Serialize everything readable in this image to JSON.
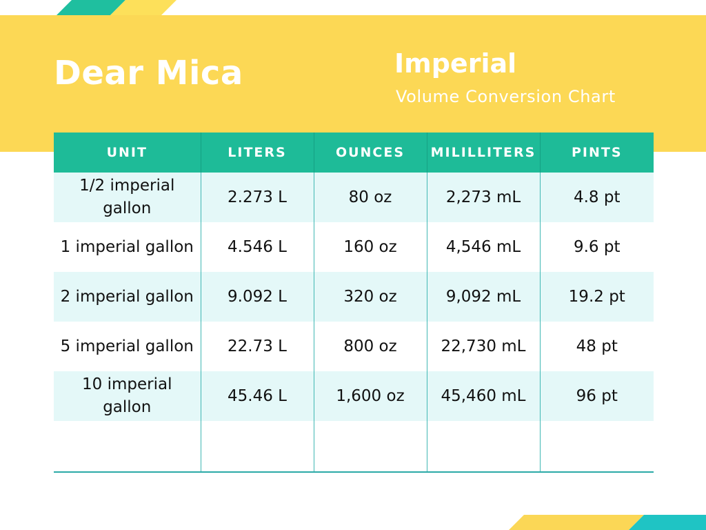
{
  "header": {
    "brand": "Dear Mica",
    "title": "Imperial",
    "subtitle": "Volume Conversion Chart"
  },
  "colors": {
    "banner": "#fcd855",
    "header_row": "#1ebb98",
    "row_shade": "#e4f8f8",
    "accent_teal": "#1fc4c4"
  },
  "table": {
    "columns": [
      "UNIT",
      "LITERS",
      "OUNCES",
      "MILILLITERS",
      "PINTS"
    ],
    "rows": [
      [
        "1/2 imperial gallon",
        "2.273 L",
        "80 oz",
        "2,273 mL",
        "4.8 pt"
      ],
      [
        "1 imperial gallon",
        "4.546 L",
        "160 oz",
        "4,546 mL",
        "9.6 pt"
      ],
      [
        "2 imperial gallon",
        "9.092 L",
        "320 oz",
        "9,092 mL",
        "19.2 pt"
      ],
      [
        "5 imperial gallon",
        "22.73 L",
        "800 oz",
        "22,730 mL",
        "48 pt"
      ],
      [
        "10 imperial gallon",
        "45.46 L",
        "1,600 oz",
        "45,460 mL",
        "96 pt"
      ]
    ]
  }
}
